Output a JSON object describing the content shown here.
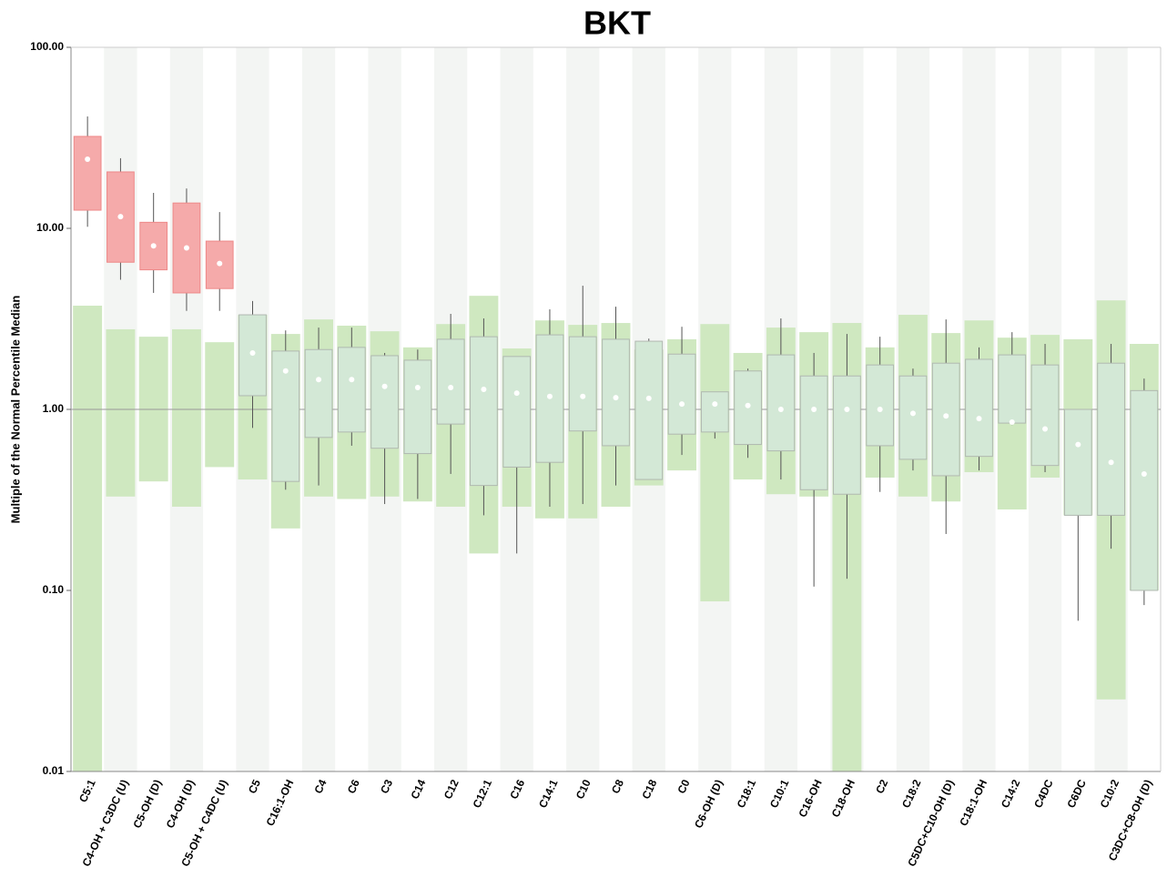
{
  "chart_data": {
    "type": "box",
    "title": "BKT",
    "y_label": "Multiple of the Normal Percentile Median",
    "y_scale": "log",
    "ylim": [
      0.01,
      100
    ],
    "yticks": [
      {
        "value": 100,
        "label": "100.00"
      },
      {
        "value": 10,
        "label": "10.00"
      },
      {
        "value": 1,
        "label": "1.00"
      },
      {
        "value": 0.1,
        "label": "0.10"
      },
      {
        "value": 0.01,
        "label": "0.01"
      }
    ],
    "reference_line": 1,
    "categories": [
      "C5:1",
      "C4-OH + C3DC (U)",
      "C5-OH (D)",
      "C4-OH (D)",
      "C5-OH + C4DC (U)",
      "C5",
      "C16:1-OH",
      "C4",
      "C6",
      "C3",
      "C14",
      "C12",
      "C12:1",
      "C16",
      "C14:1",
      "C10",
      "C8",
      "C18",
      "C0",
      "C6-OH (D)",
      "C18:1",
      "C10:1",
      "C16-OH",
      "C18-OH",
      "C2",
      "C18:2",
      "C5DC+C10-OH (D)",
      "C18:1-OH",
      "C14:2",
      "C4DC",
      "C6DC",
      "C10:2",
      "C3DC+C8-OH (D)"
    ],
    "range_low": [
      0.01,
      0.33,
      0.4,
      0.29,
      0.48,
      0.41,
      0.22,
      0.33,
      0.32,
      0.33,
      0.31,
      0.29,
      0.16,
      0.29,
      0.25,
      0.25,
      0.29,
      0.38,
      0.46,
      0.087,
      0.41,
      0.34,
      0.33,
      0.01,
      0.42,
      0.33,
      0.31,
      0.45,
      0.28,
      0.42,
      0.26,
      0.025,
      0.1
    ],
    "range_high": [
      3.74,
      2.77,
      2.52,
      2.77,
      2.35,
      3.33,
      2.61,
      3.14,
      2.9,
      2.7,
      2.2,
      2.96,
      4.24,
      2.17,
      3.1,
      2.93,
      3.0,
      2.14,
      2.44,
      2.96,
      2.05,
      2.83,
      2.67,
      3.0,
      2.2,
      3.33,
      2.64,
      3.1,
      2.49,
      2.58,
      2.44,
      4.0,
      2.3
    ],
    "whisker_low": [
      10.2,
      5.2,
      4.4,
      3.5,
      3.5,
      0.79,
      0.36,
      0.38,
      0.63,
      0.3,
      0.32,
      0.44,
      0.26,
      0.16,
      0.29,
      0.3,
      0.38,
      0.41,
      0.56,
      0.69,
      0.54,
      0.41,
      0.105,
      0.116,
      0.35,
      0.46,
      0.205,
      0.46,
      0.82,
      0.45,
      0.068,
      0.17,
      0.083
    ],
    "q1": [
      12.6,
      6.5,
      5.9,
      4.4,
      4.65,
      1.19,
      0.4,
      0.7,
      0.75,
      0.61,
      0.57,
      0.83,
      0.38,
      0.48,
      0.51,
      0.76,
      0.63,
      0.41,
      0.73,
      0.75,
      0.64,
      0.59,
      0.36,
      0.34,
      0.63,
      0.53,
      0.43,
      0.55,
      0.84,
      0.49,
      0.26,
      0.26,
      0.1
    ],
    "median": [
      24.1,
      11.6,
      8.0,
      7.8,
      6.4,
      2.05,
      1.63,
      1.46,
      1.46,
      1.34,
      1.32,
      1.32,
      1.29,
      1.23,
      1.18,
      1.18,
      1.16,
      1.15,
      1.07,
      1.07,
      1.05,
      1.0,
      1.0,
      1.0,
      1.0,
      0.95,
      0.92,
      0.89,
      0.85,
      0.78,
      0.64,
      0.51,
      0.44
    ],
    "q3": [
      32.2,
      20.5,
      10.8,
      13.8,
      8.5,
      3.33,
      2.1,
      2.14,
      2.2,
      1.98,
      1.87,
      2.44,
      2.52,
      1.96,
      2.58,
      2.52,
      2.44,
      2.38,
      2.02,
      1.25,
      1.63,
      2.0,
      1.53,
      1.53,
      1.76,
      1.53,
      1.8,
      1.89,
      2.0,
      1.76,
      1.0,
      1.8,
      1.27
    ],
    "whisker_high": [
      41.5,
      24.4,
      15.7,
      16.6,
      12.3,
      3.97,
      2.73,
      2.83,
      2.83,
      2.05,
      2.14,
      3.37,
      3.18,
      1.7,
      3.57,
      4.82,
      3.69,
      2.46,
      2.86,
      1.25,
      1.68,
      3.18,
      2.05,
      2.61,
      2.52,
      1.68,
      3.14,
      2.2,
      2.67,
      2.3,
      1.0,
      2.3,
      1.48
    ],
    "range_color": "#cfe8c0",
    "box_colors": [
      "#f5aaaa",
      "#f5aaaa",
      "#f5aaaa",
      "#f5aaaa",
      "#f5aaaa",
      "#d3e8d6",
      "#d3e8d6",
      "#d3e8d6",
      "#d3e8d6",
      "#d3e8d6",
      "#d3e8d6",
      "#d3e8d6",
      "#d3e8d6",
      "#d3e8d6",
      "#d3e8d6",
      "#d3e8d6",
      "#d3e8d6",
      "#d3e8d6",
      "#d3e8d6",
      "#d3e8d6",
      "#d3e8d6",
      "#d3e8d6",
      "#d3e8d6",
      "#d3e8d6",
      "#d3e8d6",
      "#d3e8d6",
      "#d3e8d6",
      "#d3e8d6",
      "#d3e8d6",
      "#d3e8d6",
      "#d3e8d6",
      "#d3e8d6",
      "#d3e8d6"
    ]
  }
}
